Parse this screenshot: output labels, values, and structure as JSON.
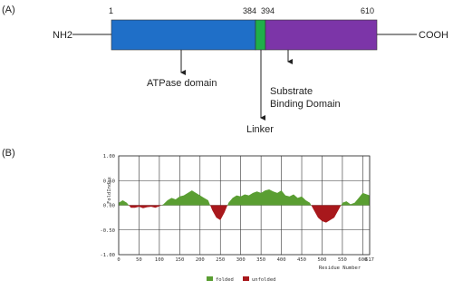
{
  "panel_a": {
    "label": "(A)",
    "n_terminus": "NH2",
    "c_terminus": "COOH",
    "positions": [
      "1",
      "384",
      "394",
      "610"
    ],
    "domains": [
      "ATPase domain",
      "Linker",
      "Substrate",
      "Binding Domain"
    ]
  },
  "chart_data": {
    "type": "area",
    "panel_label": "(B)",
    "y_label": "FoldIndex",
    "x_label": "Residue Number",
    "xlim": [
      0,
      617
    ],
    "ylim": [
      -1,
      1
    ],
    "xticks": [
      0,
      50,
      100,
      150,
      200,
      250,
      300,
      350,
      400,
      450,
      500,
      550,
      600,
      617
    ],
    "yticks": [
      {
        "value": 1,
        "label": "1.00"
      },
      {
        "value": 0.5,
        "label": "0.50"
      },
      {
        "value": 0,
        "label": "0.00"
      },
      {
        "value": -0.5,
        "label": "-0.50"
      },
      {
        "value": -1,
        "label": "-1.00"
      }
    ],
    "grid": true,
    "x": [
      0,
      10,
      20,
      30,
      40,
      50,
      60,
      70,
      80,
      90,
      100,
      110,
      120,
      130,
      140,
      150,
      160,
      170,
      180,
      190,
      200,
      210,
      220,
      230,
      240,
      250,
      260,
      270,
      280,
      290,
      300,
      310,
      320,
      330,
      340,
      350,
      360,
      370,
      380,
      390,
      400,
      410,
      420,
      430,
      440,
      450,
      460,
      470,
      480,
      490,
      500,
      510,
      520,
      530,
      540,
      550,
      560,
      570,
      580,
      590,
      600,
      610,
      617
    ],
    "values": [
      0.05,
      0.1,
      0.05,
      -0.05,
      -0.05,
      -0.03,
      -0.06,
      -0.04,
      -0.03,
      -0.05,
      -0.02,
      0.02,
      0.1,
      0.15,
      0.12,
      0.18,
      0.2,
      0.25,
      0.3,
      0.25,
      0.2,
      0.15,
      0.1,
      -0.1,
      -0.25,
      -0.3,
      -0.15,
      0.05,
      0.15,
      0.2,
      0.18,
      0.22,
      0.2,
      0.25,
      0.28,
      0.25,
      0.3,
      0.32,
      0.28,
      0.25,
      0.3,
      0.2,
      0.18,
      0.22,
      0.15,
      0.18,
      0.1,
      0.05,
      -0.1,
      -0.25,
      -0.32,
      -0.35,
      -0.3,
      -0.25,
      -0.1,
      0.05,
      0.08,
      0.02,
      0.05,
      0.15,
      0.25,
      0.22,
      0.2
    ],
    "legend": [
      {
        "name": "folded",
        "color": "#5a9e32"
      },
      {
        "name": "unfolded",
        "color": "#a8181c"
      }
    ]
  }
}
